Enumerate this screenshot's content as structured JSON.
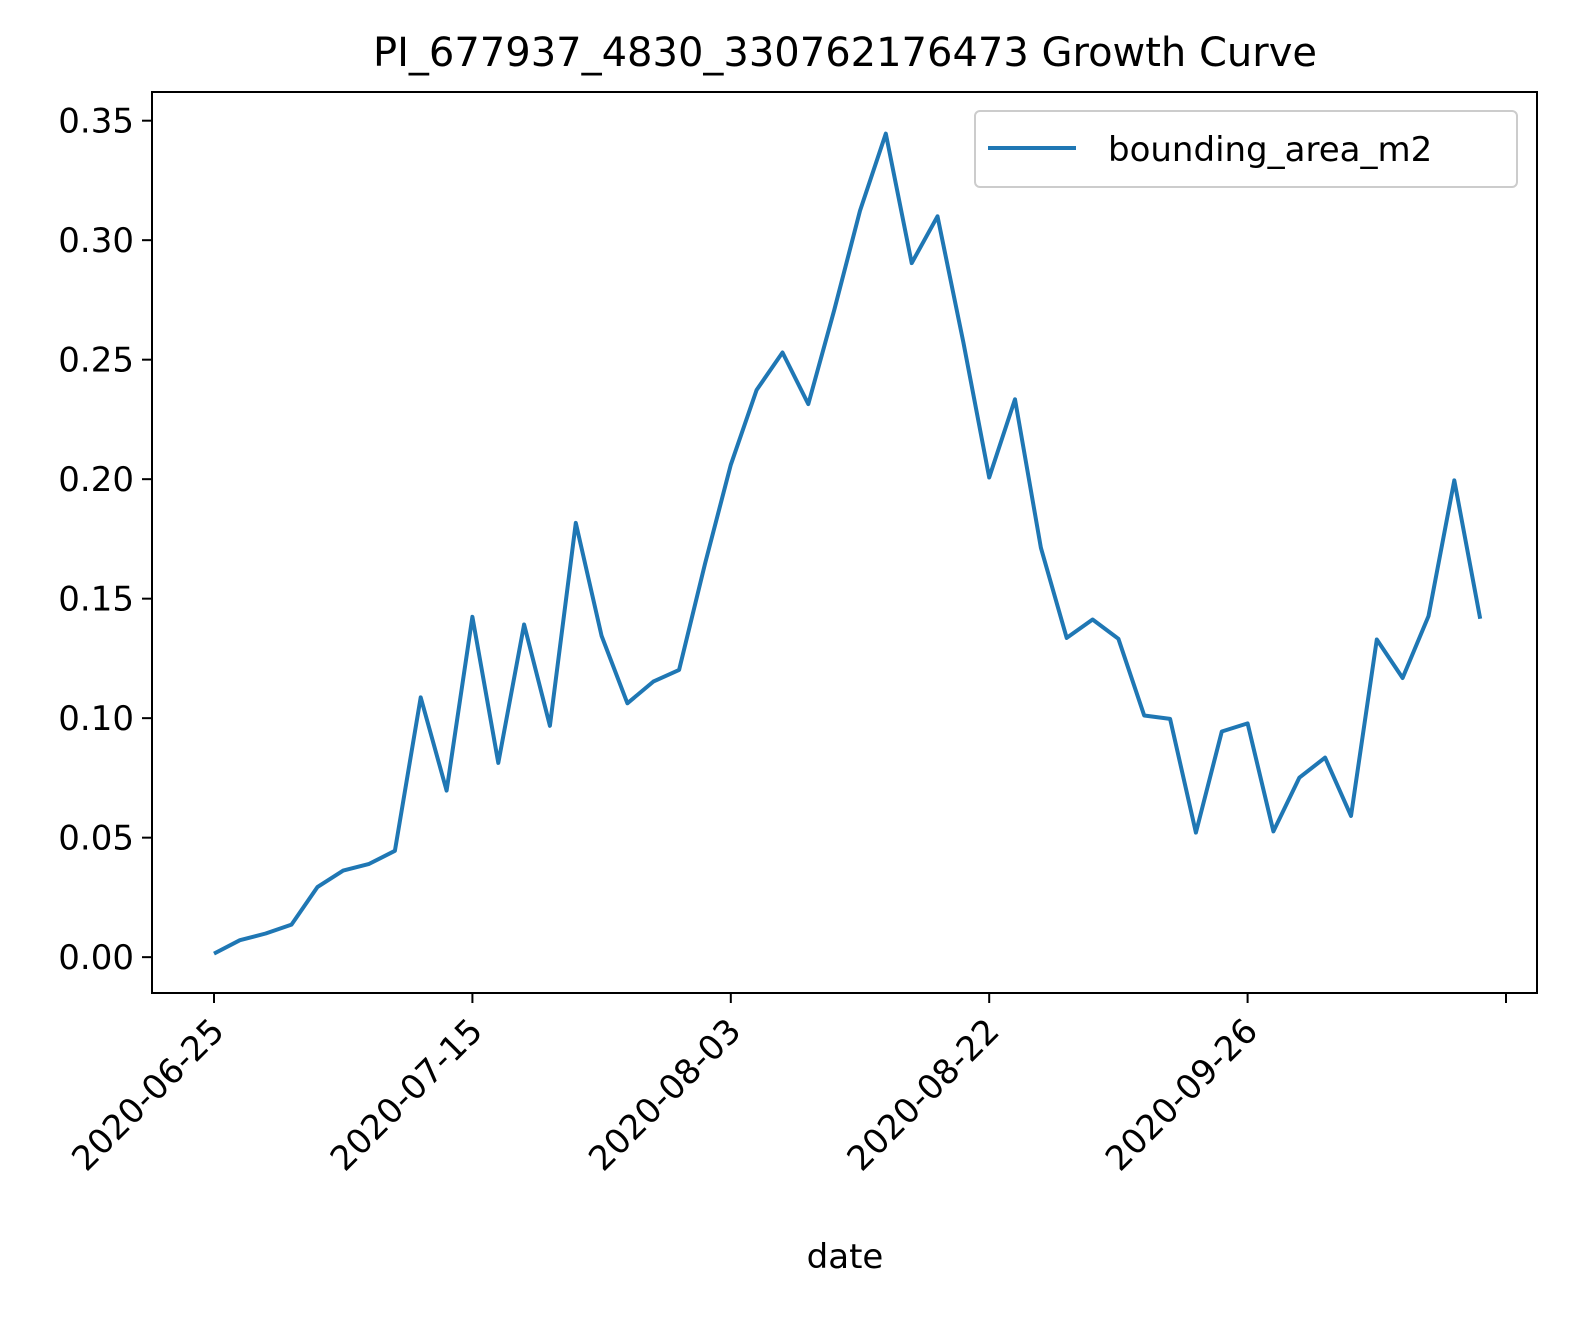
{
  "chart_data": {
    "type": "line",
    "title": "PI_677937_4830_330762176473 Growth Curve",
    "xlabel": "date",
    "ylabel": "",
    "x_tick_labels": [
      "2020-06-25",
      "2020-07-15",
      "2020-08-03",
      "2020-08-22",
      "2020-09-26"
    ],
    "y_ticks": [
      0.0,
      0.05,
      0.1,
      0.15,
      0.2,
      0.25,
      0.3,
      0.35
    ],
    "y_tick_labels": [
      "0.00",
      "0.05",
      "0.10",
      "0.15",
      "0.20",
      "0.25",
      "0.30",
      "0.35"
    ],
    "ylim": [
      -0.015,
      0.362
    ],
    "x_index_range": [
      -2.4,
      51.2
    ],
    "x_tick_index": [
      0,
      10,
      20,
      30,
      40,
      50
    ],
    "legend_position": "top-right",
    "grid": false,
    "series": [
      {
        "name": "bounding_area_m2",
        "color": "#1f77b4",
        "values": [
          0.0015,
          0.0071,
          0.0099,
          0.0136,
          0.0293,
          0.0362,
          0.039,
          0.0445,
          0.1087,
          0.0697,
          0.1424,
          0.0813,
          0.1392,
          0.0968,
          0.1817,
          0.1344,
          0.1062,
          0.1153,
          0.1202,
          0.1646,
          0.206,
          0.2373,
          0.253,
          0.2314,
          0.2707,
          0.3123,
          0.3446,
          0.2904,
          0.31,
          0.2572,
          0.2007,
          0.2334,
          0.1713,
          0.1336,
          0.1413,
          0.1332,
          0.1011,
          0.0997,
          0.0521,
          0.0944,
          0.0978,
          0.0526,
          0.0751,
          0.0835,
          0.0591,
          0.1329,
          0.1168,
          0.1427,
          0.1995,
          0.1416
        ]
      }
    ]
  }
}
